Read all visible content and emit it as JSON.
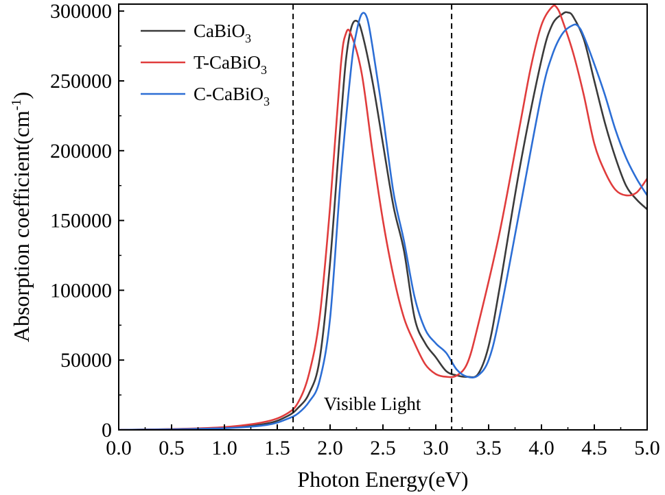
{
  "chart_data": {
    "type": "line",
    "xlabel": "Photon Energy(eV)",
    "ylabel_main": "Absorption coefficient(cm",
    "ylabel_sup": "-1",
    "ylabel_close": ")",
    "xlim": [
      0,
      5
    ],
    "ylim": [
      0,
      305000
    ],
    "xticks": [
      0.0,
      0.5,
      1.0,
      1.5,
      2.0,
      2.5,
      3.0,
      3.5,
      4.0,
      4.5,
      5.0
    ],
    "xtick_labels": [
      "0.0",
      "0.5",
      "1.0",
      "1.5",
      "2.0",
      "2.5",
      "3.0",
      "3.5",
      "4.0",
      "4.5",
      "5.0"
    ],
    "yticks": [
      0,
      50000,
      100000,
      150000,
      200000,
      250000,
      300000
    ],
    "ytick_labels": [
      "0",
      "50000",
      "100000",
      "150000",
      "200000",
      "250000",
      "300000"
    ],
    "grid": false,
    "legend_position": "top-left",
    "vlines": [
      1.65,
      3.15
    ],
    "annotation": "Visible Light",
    "series": [
      {
        "name": "CaBiO3",
        "legend_main": "CaBiO",
        "legend_sub": "3",
        "color": "#3a3a3a",
        "points": [
          [
            0,
            0
          ],
          [
            0.5,
            500
          ],
          [
            1.0,
            1500
          ],
          [
            1.4,
            4500
          ],
          [
            1.6,
            10000
          ],
          [
            1.7,
            16000
          ],
          [
            1.8,
            26000
          ],
          [
            1.9,
            50000
          ],
          [
            2.0,
            120000
          ],
          [
            2.1,
            220000
          ],
          [
            2.15,
            265000
          ],
          [
            2.2,
            288000
          ],
          [
            2.25,
            293000
          ],
          [
            2.3,
            285000
          ],
          [
            2.4,
            250000
          ],
          [
            2.5,
            205000
          ],
          [
            2.6,
            160000
          ],
          [
            2.7,
            128000
          ],
          [
            2.8,
            80000
          ],
          [
            2.9,
            62000
          ],
          [
            3.0,
            52000
          ],
          [
            3.1,
            42000
          ],
          [
            3.2,
            39000
          ],
          [
            3.3,
            38000
          ],
          [
            3.4,
            40000
          ],
          [
            3.5,
            60000
          ],
          [
            3.6,
            100000
          ],
          [
            3.8,
            190000
          ],
          [
            4.0,
            265000
          ],
          [
            4.1,
            290000
          ],
          [
            4.2,
            298000
          ],
          [
            4.25,
            299000
          ],
          [
            4.3,
            296000
          ],
          [
            4.4,
            280000
          ],
          [
            4.5,
            250000
          ],
          [
            4.6,
            220000
          ],
          [
            4.7,
            195000
          ],
          [
            4.8,
            175000
          ],
          [
            4.9,
            165000
          ],
          [
            5.0,
            158000
          ]
        ]
      },
      {
        "name": "T-CaBiO3",
        "legend_main": "T-CaBiO",
        "legend_sub": "3",
        "color": "#e03c3c",
        "points": [
          [
            0,
            0
          ],
          [
            0.5,
            600
          ],
          [
            1.0,
            2000
          ],
          [
            1.4,
            6000
          ],
          [
            1.6,
            12000
          ],
          [
            1.7,
            20000
          ],
          [
            1.8,
            40000
          ],
          [
            1.9,
            80000
          ],
          [
            2.0,
            160000
          ],
          [
            2.1,
            260000
          ],
          [
            2.15,
            284000
          ],
          [
            2.2,
            283000
          ],
          [
            2.3,
            255000
          ],
          [
            2.4,
            200000
          ],
          [
            2.5,
            150000
          ],
          [
            2.6,
            110000
          ],
          [
            2.7,
            80000
          ],
          [
            2.8,
            62000
          ],
          [
            2.9,
            47000
          ],
          [
            3.0,
            40000
          ],
          [
            3.1,
            38000
          ],
          [
            3.2,
            39000
          ],
          [
            3.3,
            48000
          ],
          [
            3.4,
            75000
          ],
          [
            3.6,
            140000
          ],
          [
            3.8,
            220000
          ],
          [
            3.9,
            260000
          ],
          [
            4.0,
            290000
          ],
          [
            4.1,
            303000
          ],
          [
            4.15,
            302000
          ],
          [
            4.2,
            293000
          ],
          [
            4.3,
            270000
          ],
          [
            4.4,
            240000
          ],
          [
            4.5,
            205000
          ],
          [
            4.6,
            185000
          ],
          [
            4.7,
            172000
          ],
          [
            4.8,
            168000
          ],
          [
            4.9,
            170000
          ],
          [
            5.0,
            180000
          ]
        ]
      },
      {
        "name": "C-CaBiO3",
        "legend_main": "C-CaBiO",
        "legend_sub": "3",
        "color": "#2c6ed5",
        "points": [
          [
            0,
            0
          ],
          [
            0.5,
            400
          ],
          [
            1.0,
            1200
          ],
          [
            1.4,
            3500
          ],
          [
            1.6,
            8000
          ],
          [
            1.7,
            12000
          ],
          [
            1.8,
            20000
          ],
          [
            1.9,
            35000
          ],
          [
            2.0,
            80000
          ],
          [
            2.1,
            180000
          ],
          [
            2.2,
            260000
          ],
          [
            2.25,
            285000
          ],
          [
            2.3,
            298000
          ],
          [
            2.35,
            295000
          ],
          [
            2.4,
            275000
          ],
          [
            2.5,
            225000
          ],
          [
            2.6,
            170000
          ],
          [
            2.7,
            135000
          ],
          [
            2.8,
            95000
          ],
          [
            2.9,
            72000
          ],
          [
            3.0,
            62000
          ],
          [
            3.1,
            55000
          ],
          [
            3.2,
            43000
          ],
          [
            3.3,
            38000
          ],
          [
            3.4,
            39000
          ],
          [
            3.5,
            50000
          ],
          [
            3.6,
            80000
          ],
          [
            3.8,
            160000
          ],
          [
            4.0,
            240000
          ],
          [
            4.1,
            268000
          ],
          [
            4.2,
            284000
          ],
          [
            4.3,
            290000
          ],
          [
            4.35,
            289000
          ],
          [
            4.4,
            282000
          ],
          [
            4.5,
            262000
          ],
          [
            4.6,
            240000
          ],
          [
            4.7,
            215000
          ],
          [
            4.8,
            195000
          ],
          [
            4.9,
            180000
          ],
          [
            5.0,
            168000
          ]
        ]
      }
    ]
  }
}
